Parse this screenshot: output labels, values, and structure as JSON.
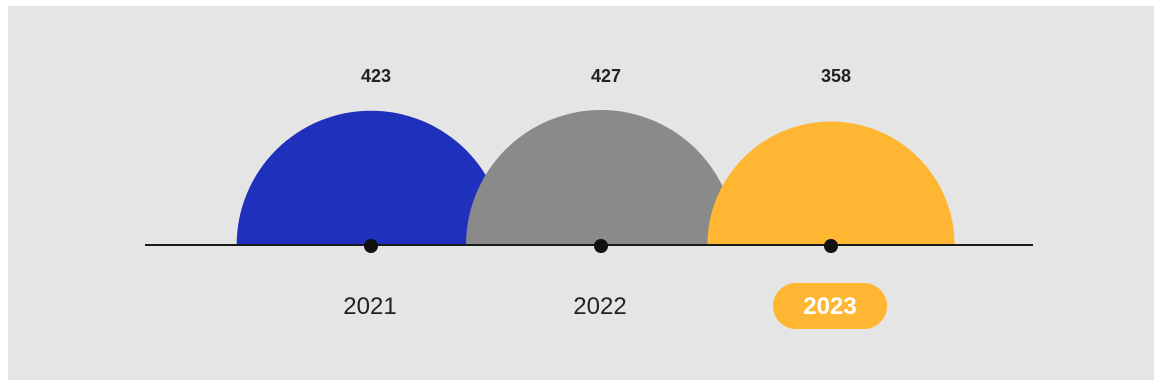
{
  "chart_data": {
    "type": "semicircle-timeline",
    "categories": [
      "2021",
      "2022",
      "2023"
    ],
    "values": [
      423,
      427,
      358
    ],
    "colors": [
      "#1f30bd",
      "#8a8a8a",
      "#ffb733"
    ],
    "highlight_index": 2,
    "highlight_color": "#ffb733",
    "axis_color": "#1a1a1a",
    "point_color": "#111111"
  }
}
